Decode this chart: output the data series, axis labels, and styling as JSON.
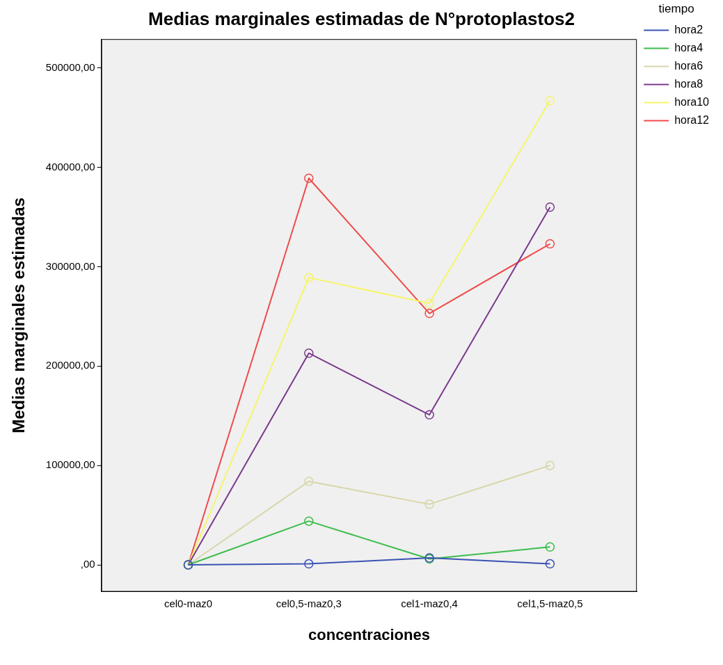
{
  "chart_data": {
    "type": "line",
    "title": "Medias marginales estimadas de N°protoplastos2",
    "xlabel": "concentraciones",
    "ylabel": "Medias marginales estimadas",
    "legend_title": "tiempo",
    "categories": [
      "cel0-maz0",
      "cel0,5-maz0,3",
      "cel1-maz0,4",
      "cel1,5-maz0,5"
    ],
    "series": [
      {
        "name": "hora2",
        "color": "#3a52b4",
        "values": [
          0,
          1000,
          7000,
          1000
        ]
      },
      {
        "name": "hora4",
        "color": "#3cbd4c",
        "values": [
          0,
          44000,
          6000,
          18000
        ]
      },
      {
        "name": "hora6",
        "color": "#d8d6a8",
        "values": [
          0,
          84000,
          61000,
          100000
        ]
      },
      {
        "name": "hora8",
        "color": "#7a3a8c",
        "values": [
          0,
          213000,
          151000,
          360000
        ]
      },
      {
        "name": "hora10",
        "color": "#f5f56a",
        "values": [
          0,
          289000,
          263000,
          467000
        ]
      },
      {
        "name": "hora12",
        "color": "#f04a4a",
        "values": [
          0,
          389000,
          253000,
          323000
        ]
      }
    ],
    "ylim": [
      -27000,
      529000
    ],
    "yticks": [
      {
        "value": 0,
        "label": ",00"
      },
      {
        "value": 100000,
        "label": "100000,00"
      },
      {
        "value": 200000,
        "label": "200000,00"
      },
      {
        "value": 300000,
        "label": "300000,00"
      },
      {
        "value": 400000,
        "label": "400000,00"
      },
      {
        "value": 500000,
        "label": "500000,00"
      }
    ],
    "grid": false,
    "legend": "right",
    "marker": "circle",
    "line_style": "solid"
  }
}
